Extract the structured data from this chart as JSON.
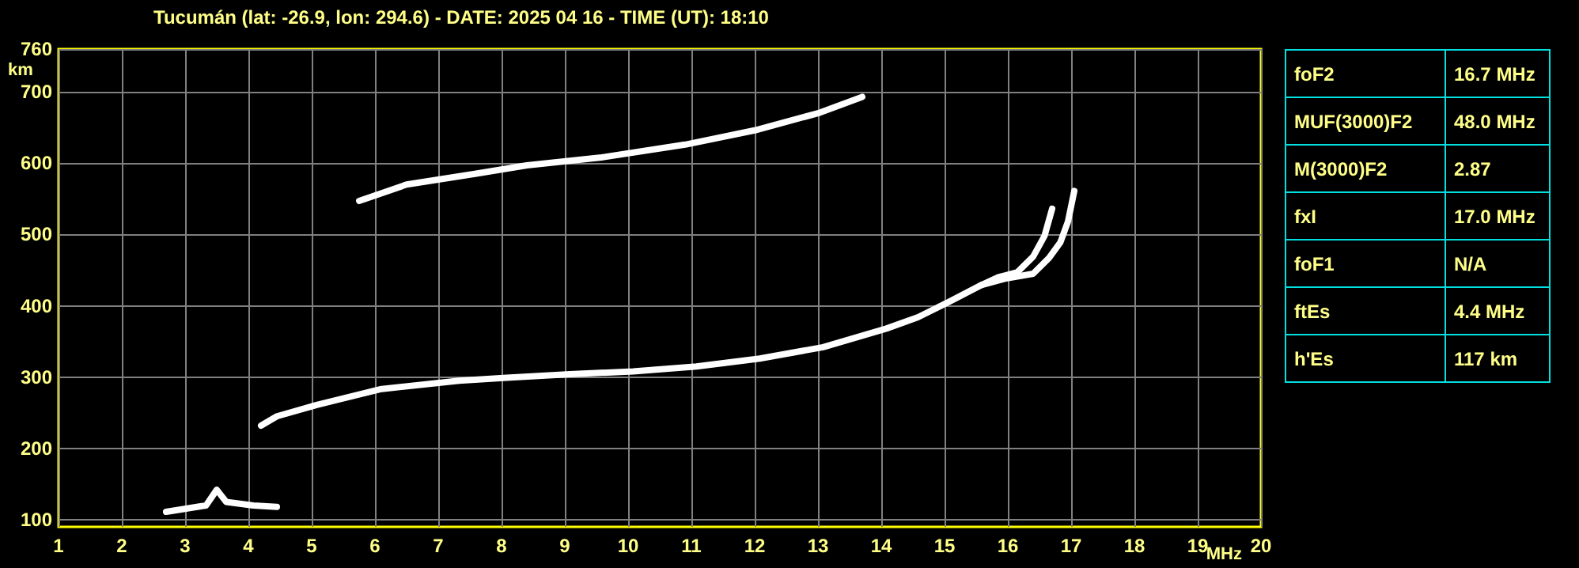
{
  "chart_data": [
    {
      "type": "line",
      "title": "Tucumán (lat: -26.9, lon: 294.6) - DATE: 2025 04 16 - TIME (UT): 18:10",
      "xlabel": "MHz",
      "ylabel": "km",
      "xlim": [
        1,
        20
      ],
      "xticks": [
        1,
        2,
        3,
        4,
        5,
        6,
        7,
        8,
        9,
        10,
        11,
        12,
        13,
        14,
        15,
        16,
        17,
        18,
        19,
        20
      ],
      "ylim": [
        90,
        760
      ],
      "yticks": [
        100,
        200,
        300,
        400,
        500,
        600,
        700,
        760
      ],
      "grid": true,
      "marker": "none",
      "line_style": "solid",
      "series": [
        {
          "color": "#ffffff",
          "x": [
            2.7,
            3.33,
            3.5,
            3.65,
            4.08,
            4.45
          ],
          "values": [
            111,
            120,
            142,
            125,
            120,
            118
          ]
        },
        {
          "color": "#ffffff",
          "x": [
            4.2,
            4.45,
            5.08,
            6.08,
            7.33,
            8.08,
            9.08,
            10.08,
            11.08,
            12.08,
            13.08,
            14.08,
            14.58,
            15.08,
            15.58,
            15.85,
            16.15,
            16.4,
            16.58,
            16.7
          ],
          "values": [
            232,
            245,
            261,
            283,
            295,
            299,
            304,
            308,
            315,
            326,
            342,
            368,
            384,
            406,
            429,
            440,
            447,
            469,
            498,
            536
          ]
        },
        {
          "color": "#ffffff",
          "x": [
            15.58,
            15.95,
            16.4,
            16.65,
            16.83,
            16.95,
            17.05
          ],
          "values": [
            429,
            438,
            445,
            467,
            489,
            518,
            561
          ]
        },
        {
          "color": "#ffffff",
          "x": [
            5.75,
            6.5,
            7.58,
            8.4,
            9.58,
            10.9,
            12.0,
            13.0,
            13.7
          ],
          "values": [
            547,
            570,
            585,
            597,
            608,
            626,
            646,
            670,
            693
          ]
        }
      ]
    },
    {
      "type": "other",
      "annotations": [
        "foF2",
        "16.7 MHz",
        "MUF(3000)F2",
        "48.0 MHz",
        "M(3000)F2",
        "2.87",
        "fxI",
        "17.0 MHz",
        "foF1",
        "N/A",
        "ftEs",
        "4.4 MHz",
        "h'Es",
        "117 km"
      ]
    }
  ]
}
